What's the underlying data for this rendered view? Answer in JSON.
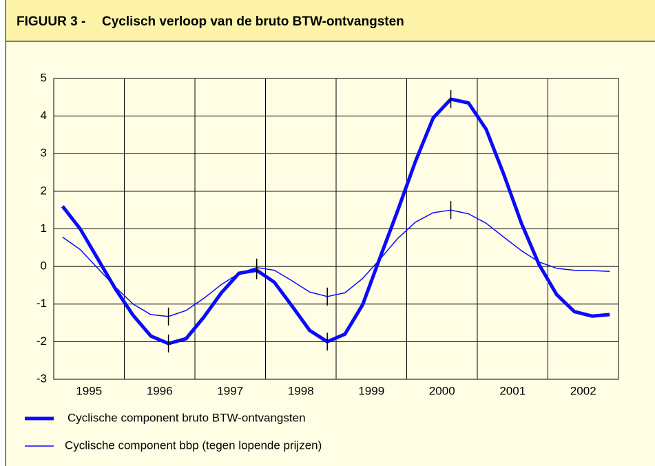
{
  "chart_data": {
    "type": "line",
    "label": "FIGUUR 3 -",
    "title": "Cyclisch verloop van de bruto BTW-ontvangsten",
    "x": [
      1995.125,
      1995.375,
      1995.625,
      1995.875,
      1996.125,
      1996.375,
      1996.625,
      1996.875,
      1997.125,
      1997.375,
      1997.625,
      1997.875,
      1998.125,
      1998.375,
      1998.625,
      1998.875,
      1999.125,
      1999.375,
      1999.625,
      1999.875,
      2000.125,
      2000.375,
      2000.625,
      2000.875,
      2001.125,
      2001.375,
      2001.625,
      2001.875,
      2002.125,
      2002.375,
      2002.625,
      2002.875
    ],
    "xlim": [
      1995,
      2003
    ],
    "xticks": [
      {
        "value": 1995.5,
        "label": "1995"
      },
      {
        "value": 1996.5,
        "label": "1996"
      },
      {
        "value": 1997.5,
        "label": "1997"
      },
      {
        "value": 1998.5,
        "label": "1998"
      },
      {
        "value": 1999.5,
        "label": "1999"
      },
      {
        "value": 2000.5,
        "label": "2000"
      },
      {
        "value": 2001.5,
        "label": "2001"
      },
      {
        "value": 2002.5,
        "label": "2002"
      }
    ],
    "ylim": [
      -3,
      5
    ],
    "yticks": [
      -3,
      -2,
      -1,
      0,
      1,
      2,
      3,
      4,
      5
    ],
    "grid": true,
    "series": [
      {
        "name": "Cyclische component bruto BTW-ontvangsten",
        "color": "#0a0aff",
        "width": 5,
        "markers": [
          6,
          11,
          15,
          22
        ],
        "values": [
          1.6,
          1.0,
          0.2,
          -0.6,
          -1.3,
          -1.85,
          -2.05,
          -1.92,
          -1.35,
          -0.7,
          -0.18,
          -0.1,
          -0.42,
          -1.05,
          -1.7,
          -2.0,
          -1.8,
          -1.02,
          0.25,
          1.5,
          2.8,
          3.95,
          4.45,
          4.35,
          3.65,
          2.45,
          1.15,
          0.05,
          -0.75,
          -1.2,
          -1.32,
          -1.28
        ]
      },
      {
        "name": "Cyclische component bbp (tegen lopende prijzen)",
        "color": "#0a0aff",
        "width": 1.5,
        "markers": [
          6,
          11,
          15,
          22
        ],
        "values": [
          0.78,
          0.45,
          -0.05,
          -0.55,
          -1.0,
          -1.28,
          -1.33,
          -1.17,
          -0.85,
          -0.48,
          -0.18,
          -0.03,
          -0.1,
          -0.38,
          -0.68,
          -0.8,
          -0.7,
          -0.32,
          0.2,
          0.75,
          1.18,
          1.43,
          1.5,
          1.4,
          1.15,
          0.78,
          0.42,
          0.12,
          -0.05,
          -0.1,
          -0.11,
          -0.13
        ]
      }
    ]
  }
}
